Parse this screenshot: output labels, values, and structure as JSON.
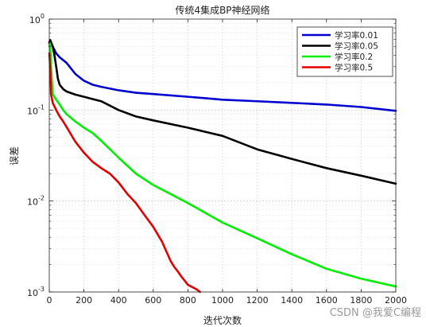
{
  "chart_data": {
    "type": "line",
    "title": "传统4集成BP神经网络",
    "xlabel": "迭代次数",
    "ylabel": "误差",
    "xlim": [
      0,
      2000
    ],
    "ylim": [
      0.001,
      1
    ],
    "yscale": "log",
    "grid": true,
    "legend_position": "top-right",
    "x_ticks": [
      0,
      200,
      400,
      600,
      800,
      1000,
      1200,
      1400,
      1600,
      1800,
      2000
    ],
    "y_ticks": [
      0.001,
      0.01,
      0.1,
      1
    ],
    "y_tick_labels": [
      {
        "base": "10",
        "exp": "-3"
      },
      {
        "base": "10",
        "exp": "-2"
      },
      {
        "base": "10",
        "exp": "-1"
      },
      {
        "base": "10",
        "exp": "0"
      }
    ],
    "series": [
      {
        "name": "学习率0.01",
        "color": "#0000d0",
        "x": [
          0,
          5,
          20,
          40,
          60,
          100,
          150,
          200,
          250,
          300,
          400,
          500,
          600,
          800,
          1000,
          1200,
          1400,
          1600,
          1800,
          2000
        ],
        "y": [
          0.55,
          0.59,
          0.5,
          0.42,
          0.38,
          0.33,
          0.25,
          0.21,
          0.19,
          0.18,
          0.165,
          0.155,
          0.15,
          0.14,
          0.13,
          0.125,
          0.12,
          0.115,
          0.108,
          0.098
        ]
      },
      {
        "name": "学习率0.05",
        "color": "#000000",
        "x": [
          0,
          5,
          10,
          20,
          30,
          40,
          50,
          60,
          80,
          100,
          150,
          200,
          250,
          300,
          400,
          500,
          600,
          800,
          1000,
          1200,
          1400,
          1600,
          1800,
          2000
        ],
        "y": [
          0.55,
          0.58,
          0.56,
          0.5,
          0.4,
          0.3,
          0.22,
          0.19,
          0.17,
          0.16,
          0.148,
          0.14,
          0.132,
          0.125,
          0.1,
          0.085,
          0.077,
          0.064,
          0.052,
          0.037,
          0.029,
          0.023,
          0.019,
          0.0155
        ]
      },
      {
        "name": "学习率0.2",
        "color": "#00ee00",
        "x": [
          0,
          5,
          10,
          20,
          40,
          60,
          80,
          100,
          150,
          200,
          250,
          300,
          400,
          500,
          600,
          800,
          1000,
          1200,
          1400,
          1600,
          1800,
          2000
        ],
        "y": [
          0.5,
          0.54,
          0.3,
          0.15,
          0.13,
          0.115,
          0.1,
          0.09,
          0.075,
          0.064,
          0.056,
          0.046,
          0.03,
          0.02,
          0.015,
          0.0095,
          0.0058,
          0.0039,
          0.0026,
          0.0018,
          0.0014,
          0.00115
        ]
      },
      {
        "name": "学习率0.5",
        "color": "#e00000",
        "x": [
          0,
          5,
          10,
          20,
          40,
          60,
          80,
          100,
          150,
          200,
          250,
          300,
          350,
          400,
          450,
          500,
          550,
          600,
          650,
          700,
          720,
          740,
          760,
          800,
          850,
          870
        ],
        "y": [
          0.42,
          0.3,
          0.15,
          0.12,
          0.1,
          0.085,
          0.075,
          0.065,
          0.045,
          0.034,
          0.027,
          0.023,
          0.02,
          0.016,
          0.012,
          0.0095,
          0.007,
          0.0052,
          0.0036,
          0.0022,
          0.0019,
          0.0017,
          0.0015,
          0.0012,
          0.00107,
          0.001
        ]
      }
    ]
  },
  "watermark": "CSDN @我爱C编程"
}
